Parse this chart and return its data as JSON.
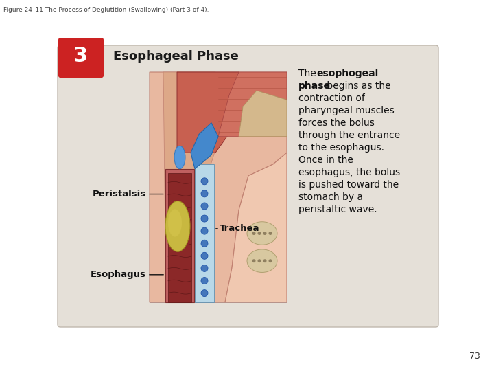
{
  "title": "Figure 24–11 The Process of Deglutition (Swallowing) (Part 3 of 4).",
  "step_number": "3",
  "step_title": "Esophageal Phase",
  "step_number_bg": "#cc2222",
  "card_bg": "#e5e0d8",
  "card_edge": "#c0b8ae",
  "label_peristalsis": "Peristalsis",
  "label_trachea": "Trachea",
  "label_esophagus": "Esophagus",
  "page_number": "73",
  "bg_color": "#ffffff",
  "desc_lines": [
    [
      "The ",
      false
    ],
    [
      "esophogeal",
      true
    ],
    [
      "phase",
      true
    ],
    [
      " begins as the",
      false
    ],
    [
      "contraction of",
      false
    ],
    [
      "pharyngeal muscles",
      false
    ],
    [
      "forces the bolus",
      false
    ],
    [
      "through the entrance",
      false
    ],
    [
      "to the esophagus.",
      false
    ],
    [
      "Once in the",
      false
    ],
    [
      "esophagus, the bolus",
      false
    ],
    [
      "is pushed toward the",
      false
    ],
    [
      "stomach by a",
      false
    ],
    [
      "peristaltic wave.",
      false
    ]
  ]
}
